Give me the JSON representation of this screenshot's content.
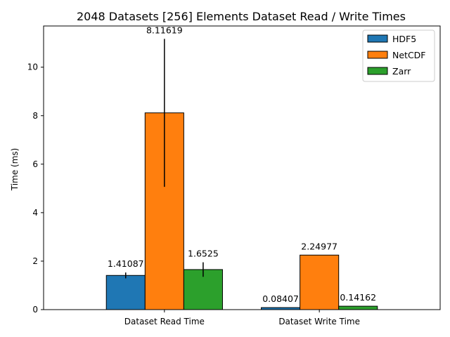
{
  "chart_data": {
    "type": "bar",
    "title": "2048 Datasets [256] Elements Dataset Read / Write Times",
    "xlabel": "",
    "ylabel": "Time (ms)",
    "categories": [
      "Dataset Read Time",
      "Dataset Write Time"
    ],
    "ylim": [
      0,
      11.7
    ],
    "yticks": [
      0,
      2,
      4,
      6,
      8,
      10
    ],
    "grid": false,
    "legend_position": "top-right",
    "series": [
      {
        "name": "HDF5",
        "color": "#1f77b4",
        "values": [
          1.41087,
          0.08407
        ],
        "labels": [
          "1.41087",
          "0.08407"
        ],
        "errors": [
          0.12,
          0.01
        ]
      },
      {
        "name": "NetCDF",
        "color": "#ff7f0e",
        "values": [
          8.11619,
          2.24977
        ],
        "labels": [
          "8.11619",
          "2.24977"
        ],
        "errors": [
          3.05,
          0.0
        ]
      },
      {
        "name": "Zarr",
        "color": "#2ca02c",
        "values": [
          1.6525,
          0.14162
        ],
        "labels": [
          "1.6525",
          "0.14162"
        ],
        "errors": [
          0.3,
          0.0
        ]
      }
    ]
  }
}
